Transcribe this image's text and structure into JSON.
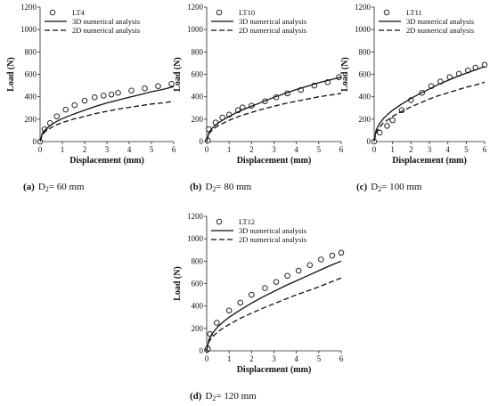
{
  "chart_data": [
    {
      "type": "line",
      "caption": {
        "letter": "(a)",
        "text": "D",
        "sub": "2",
        "suffix": "= 60 mm"
      },
      "xlabel": "Displacement (mm)",
      "ylabel": "Load (N)",
      "xlim": [
        0,
        6
      ],
      "ylim": [
        0,
        1200
      ],
      "xticks": [
        0,
        1,
        2,
        3,
        4,
        5,
        6
      ],
      "yticks": [
        0,
        200,
        400,
        600,
        800,
        1000,
        1200
      ],
      "legend": [
        {
          "label": "LT4",
          "style": "marker"
        },
        {
          "label": "3D numerical analysis",
          "style": "solid"
        },
        {
          "label": "2D numerical analysis",
          "style": "dashed"
        }
      ],
      "series": [
        {
          "name": "LT4",
          "style": "marker",
          "x": [
            0,
            0.2,
            0.45,
            0.75,
            1.15,
            1.55,
            2.0,
            2.45,
            2.85,
            3.2,
            3.5,
            4.1,
            4.7,
            5.3,
            5.9
          ],
          "y": [
            0,
            110,
            165,
            225,
            285,
            325,
            365,
            395,
            410,
            420,
            435,
            455,
            475,
            495,
            515
          ]
        },
        {
          "name": "3D numerical analysis",
          "style": "solid",
          "x": [
            0,
            0.1,
            0.25,
            0.5,
            0.75,
            1,
            1.5,
            2,
            2.5,
            3,
            3.5,
            4,
            4.5,
            5,
            5.5,
            6
          ],
          "y": [
            0,
            75,
            110,
            150,
            180,
            205,
            245,
            280,
            315,
            345,
            370,
            395,
            420,
            445,
            465,
            490
          ]
        },
        {
          "name": "2D numerical analysis",
          "style": "dashed",
          "x": [
            0,
            0.1,
            0.25,
            0.5,
            0.75,
            1,
            1.5,
            2,
            2.5,
            3,
            3.5,
            4,
            4.5,
            5,
            5.5,
            6
          ],
          "y": [
            0,
            60,
            95,
            125,
            150,
            170,
            200,
            225,
            250,
            270,
            290,
            305,
            320,
            335,
            345,
            360
          ]
        }
      ]
    },
    {
      "type": "line",
      "caption": {
        "letter": "(b)",
        "text": "D",
        "sub": "2",
        "suffix": "= 80 mm"
      },
      "xlabel": "Displacement (mm)",
      "ylabel": "Load (N)",
      "xlim": [
        0,
        6
      ],
      "ylim": [
        0,
        1200
      ],
      "xticks": [
        0,
        1,
        2,
        3,
        4,
        5,
        6
      ],
      "yticks": [
        0,
        200,
        400,
        600,
        800,
        1000,
        1200
      ],
      "legend": [
        {
          "label": "LT10",
          "style": "marker"
        },
        {
          "label": "3D numerical analysis",
          "style": "solid"
        },
        {
          "label": "2D numerical analysis",
          "style": "dashed"
        }
      ],
      "series": [
        {
          "name": "LT10",
          "style": "marker",
          "x": [
            0.05,
            0.1,
            0.4,
            0.7,
            1.0,
            1.4,
            1.6,
            2.0,
            2.6,
            3.1,
            3.6,
            4.2,
            4.8,
            5.4,
            5.9
          ],
          "y": [
            10,
            110,
            170,
            215,
            240,
            280,
            305,
            320,
            360,
            395,
            430,
            460,
            500,
            530,
            575
          ]
        },
        {
          "name": "3D numerical analysis",
          "style": "solid",
          "x": [
            0,
            0.1,
            0.25,
            0.5,
            0.75,
            1,
            1.5,
            2,
            2.5,
            3,
            3.5,
            4,
            4.5,
            5,
            5.5,
            6
          ],
          "y": [
            0,
            80,
            120,
            165,
            195,
            225,
            275,
            315,
            355,
            395,
            430,
            465,
            495,
            525,
            550,
            575
          ]
        },
        {
          "name": "2D numerical analysis",
          "style": "dashed",
          "x": [
            0,
            0.1,
            0.25,
            0.5,
            0.75,
            1,
            1.5,
            2,
            2.5,
            3,
            3.5,
            4,
            4.5,
            5,
            5.5,
            6
          ],
          "y": [
            0,
            70,
            105,
            140,
            165,
            190,
            230,
            260,
            290,
            315,
            340,
            360,
            380,
            400,
            415,
            430
          ]
        }
      ]
    },
    {
      "type": "line",
      "caption": {
        "letter": "(c)",
        "text": "D",
        "sub": "2",
        "suffix": "= 100 mm"
      },
      "xlabel": "Displacement (mm)",
      "ylabel": "Load (N)",
      "xlim": [
        0,
        6
      ],
      "ylim": [
        0,
        1200
      ],
      "xticks": [
        0,
        1,
        2,
        3,
        4,
        5,
        6
      ],
      "yticks": [
        0,
        200,
        400,
        600,
        800,
        1000,
        1200
      ],
      "legend": [
        {
          "label": "LT11",
          "style": "marker"
        },
        {
          "label": "3D numerical analysis",
          "style": "solid"
        },
        {
          "label": "2D numerical analysis",
          "style": "dashed"
        }
      ],
      "series": [
        {
          "name": "LT11",
          "style": "marker",
          "x": [
            0,
            0.3,
            0.7,
            1.0,
            1.5,
            2.0,
            2.6,
            3.1,
            3.6,
            4.1,
            4.6,
            5.1,
            5.5,
            6.0
          ],
          "y": [
            0,
            80,
            140,
            190,
            280,
            370,
            435,
            495,
            535,
            575,
            605,
            635,
            660,
            685
          ]
        },
        {
          "name": "3D numerical analysis",
          "style": "solid",
          "x": [
            0,
            0.1,
            0.25,
            0.5,
            0.75,
            1,
            1.5,
            2,
            2.5,
            3,
            3.5,
            4,
            4.5,
            5,
            5.5,
            6
          ],
          "y": [
            0,
            100,
            150,
            205,
            245,
            280,
            335,
            385,
            430,
            470,
            510,
            545,
            580,
            610,
            640,
            670
          ]
        },
        {
          "name": "2D numerical analysis",
          "style": "dashed",
          "x": [
            0,
            0.1,
            0.25,
            0.5,
            0.75,
            1,
            1.5,
            2,
            2.5,
            3,
            3.5,
            4,
            4.5,
            5,
            5.5,
            6
          ],
          "y": [
            0,
            80,
            120,
            165,
            195,
            225,
            270,
            310,
            345,
            380,
            410,
            435,
            460,
            485,
            505,
            530
          ]
        }
      ]
    },
    {
      "type": "line",
      "caption": {
        "letter": "(d)",
        "text": "D",
        "sub": "2",
        "suffix": "= 120 mm"
      },
      "xlabel": "Displacement (mm)",
      "ylabel": "Load (N)",
      "xlim": [
        0,
        6
      ],
      "ylim": [
        0,
        1200
      ],
      "xticks": [
        0,
        1,
        2,
        3,
        4,
        5,
        6
      ],
      "yticks": [
        0,
        200,
        400,
        600,
        800,
        1000,
        1200
      ],
      "legend": [
        {
          "label": "LT12",
          "style": "marker"
        },
        {
          "label": "3D numerical analysis",
          "style": "solid"
        },
        {
          "label": "2D numerical analysis",
          "style": "dashed"
        }
      ],
      "series": [
        {
          "name": "LT12",
          "style": "marker",
          "x": [
            0.02,
            0.05,
            0.15,
            0.45,
            1.0,
            1.5,
            2.0,
            2.6,
            3.1,
            3.6,
            4.1,
            4.6,
            5.1,
            5.6,
            6.0
          ],
          "y": [
            10,
            20,
            150,
            250,
            360,
            430,
            500,
            560,
            615,
            670,
            715,
            765,
            815,
            850,
            875
          ]
        },
        {
          "name": "3D numerical analysis",
          "style": "solid",
          "x": [
            0,
            0.1,
            0.25,
            0.5,
            0.75,
            1,
            1.5,
            2,
            2.5,
            3,
            3.5,
            4,
            4.5,
            5,
            5.5,
            6
          ],
          "y": [
            0,
            100,
            155,
            215,
            260,
            300,
            365,
            425,
            480,
            530,
            580,
            625,
            670,
            715,
            760,
            800
          ]
        },
        {
          "name": "2D numerical analysis",
          "style": "dashed",
          "x": [
            0,
            0.1,
            0.25,
            0.5,
            0.75,
            1,
            1.5,
            2,
            2.5,
            3,
            3.5,
            4,
            4.5,
            5,
            5.5,
            6
          ],
          "y": [
            0,
            80,
            125,
            170,
            205,
            235,
            290,
            335,
            380,
            420,
            460,
            500,
            535,
            570,
            610,
            650
          ]
        }
      ]
    }
  ]
}
